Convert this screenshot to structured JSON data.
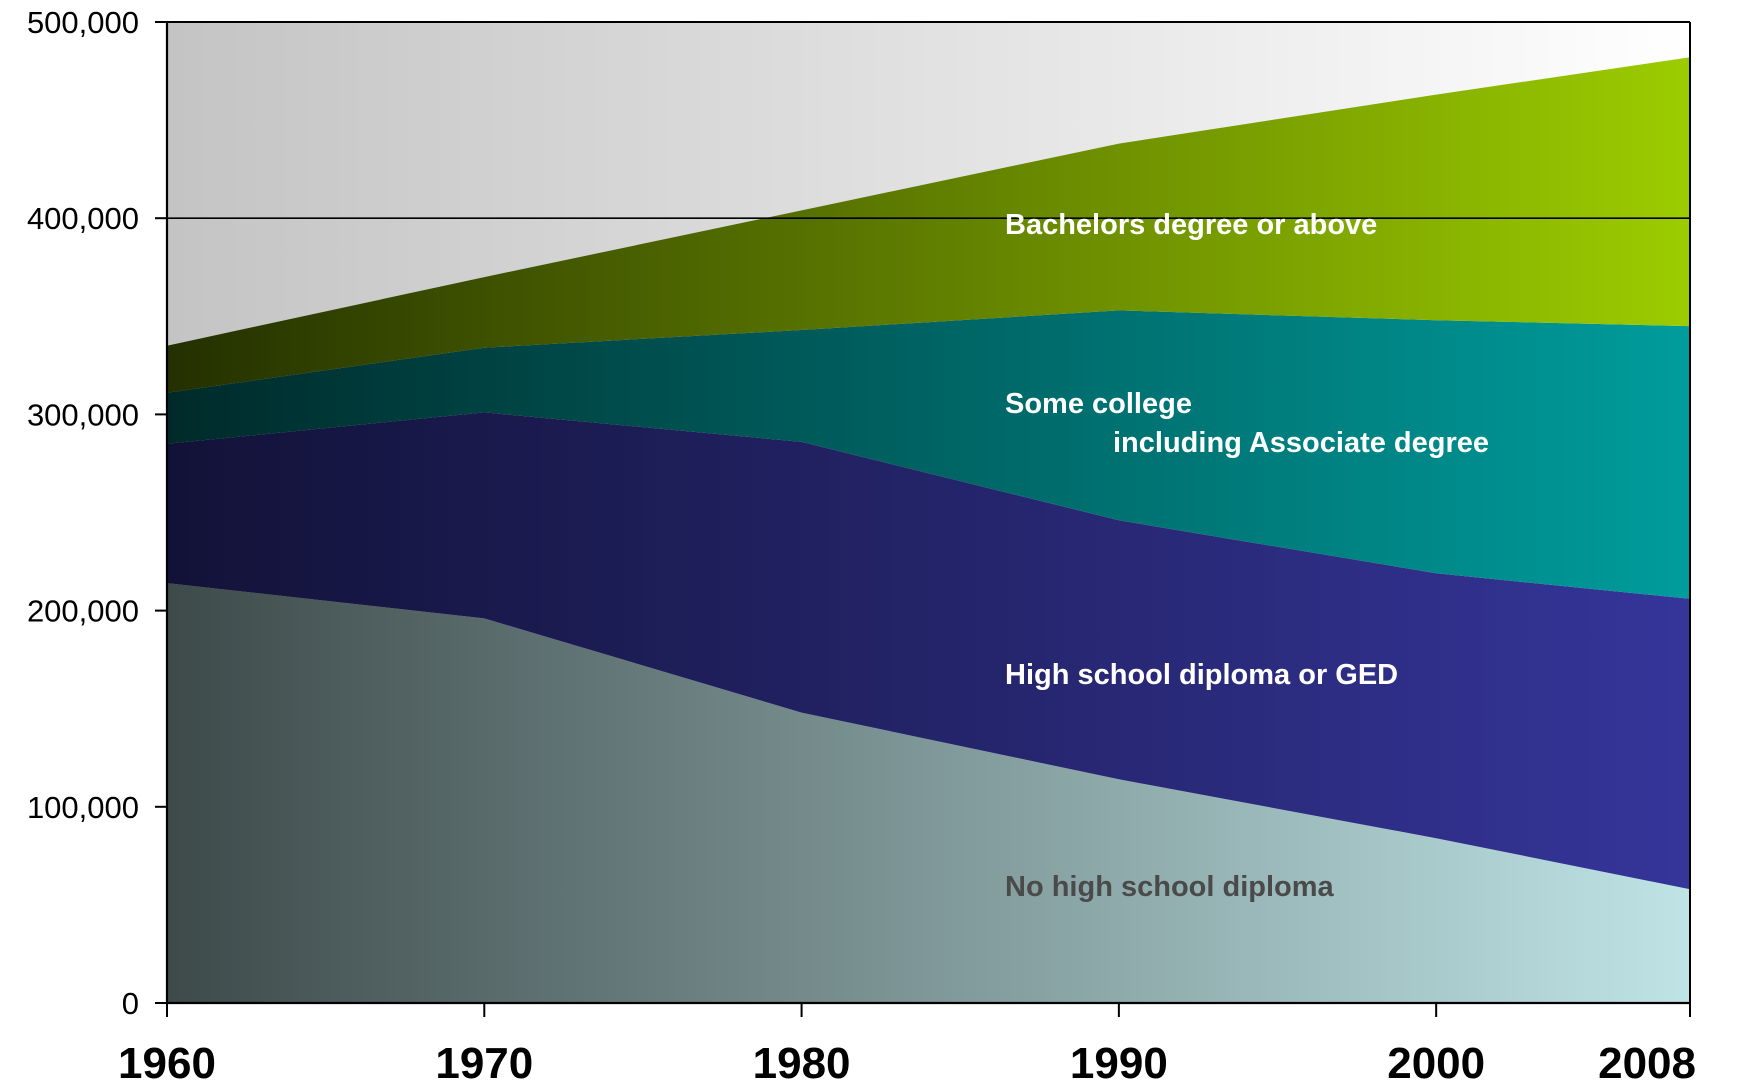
{
  "chart_data": {
    "type": "area",
    "stacked": true,
    "x": [
      1960,
      1970,
      1980,
      1990,
      2000,
      2008
    ],
    "x_tick_labels": [
      "1960",
      "1970",
      "1980",
      "1990",
      "2000",
      "2008"
    ],
    "ylim": [
      0,
      500000
    ],
    "y_ticks": [
      0,
      100000,
      200000,
      300000,
      400000,
      500000
    ],
    "y_tick_labels": [
      "0",
      "100,000",
      "200,000",
      "300,000",
      "400,000",
      "500,000"
    ],
    "grid": "horizontal line at 400,000",
    "series": [
      {
        "name": "No high school diploma",
        "values": [
          214000,
          196000,
          148000,
          114000,
          84000,
          58000
        ],
        "colors": [
          "#3e4a4a",
          "#bfe4e6"
        ],
        "label_color": "#4a4a4a"
      },
      {
        "name": "High school diploma or GED",
        "values": [
          71000,
          105000,
          138000,
          132000,
          135000,
          148000
        ],
        "colors": [
          "#121238",
          "#35359a"
        ],
        "label_color": "#ffffff"
      },
      {
        "name": "Some college including Associate degree",
        "label_lines": [
          "Some college",
          "including Associate degree"
        ],
        "values": [
          26000,
          33000,
          57000,
          107000,
          129000,
          139000
        ],
        "colors": [
          "#002a2a",
          "#009c9c"
        ],
        "label_color": "#ffffff"
      },
      {
        "name": "Bachelors degree or above",
        "values": [
          24000,
          36000,
          61000,
          85000,
          115000,
          137000
        ],
        "colors": [
          "#243000",
          "#9ccc00"
        ],
        "label_color": "#ffffff"
      }
    ],
    "background": {
      "colors": [
        "#c4c4c4",
        "#ffffff"
      ]
    }
  }
}
